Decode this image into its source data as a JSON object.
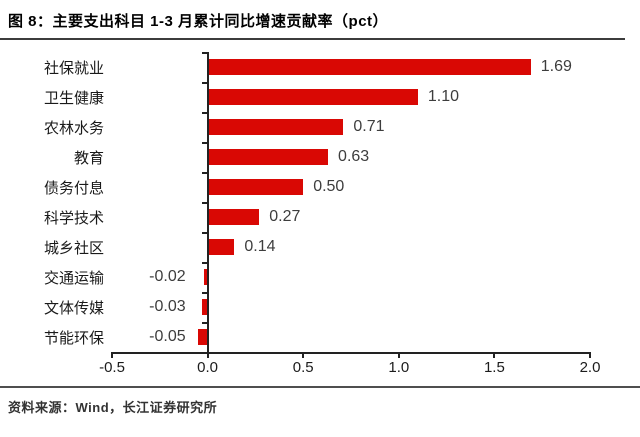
{
  "figure": {
    "title": "图 8：主要支出科目 1-3 月累计同比增速贡献率（pct）",
    "source": "资料来源：Wind，长江证券研究所"
  },
  "colors": {
    "bar": "#D90804",
    "axis": "#222222",
    "title_rule": "#3C3C3C",
    "footer_rule": "#4F4F4F"
  },
  "chart_data": {
    "type": "bar",
    "orientation": "horizontal",
    "title": "图 8：主要支出科目 1-3 月累计同比增速贡献率（pct）",
    "categories": [
      "社保就业",
      "卫生健康",
      "农林水务",
      "教育",
      "债务付息",
      "科学技术",
      "城乡社区",
      "交通运输",
      "文体传媒",
      "节能环保"
    ],
    "values": [
      1.69,
      1.1,
      0.71,
      0.63,
      0.5,
      0.27,
      0.14,
      -0.02,
      -0.03,
      -0.05
    ],
    "value_labels": [
      "1.69",
      "1.10",
      "0.71",
      "0.63",
      "0.50",
      "0.27",
      "0.14",
      "-0.02",
      "-0.03",
      "-0.05"
    ],
    "xlabel": "",
    "ylabel": "",
    "xlim": [
      -0.5,
      2.0
    ],
    "x_ticks": [
      "-0.5",
      "0.0",
      "0.5",
      "1.0",
      "1.5",
      "2.0"
    ],
    "grid": false,
    "legend": false,
    "bar_color": "#D90804"
  }
}
